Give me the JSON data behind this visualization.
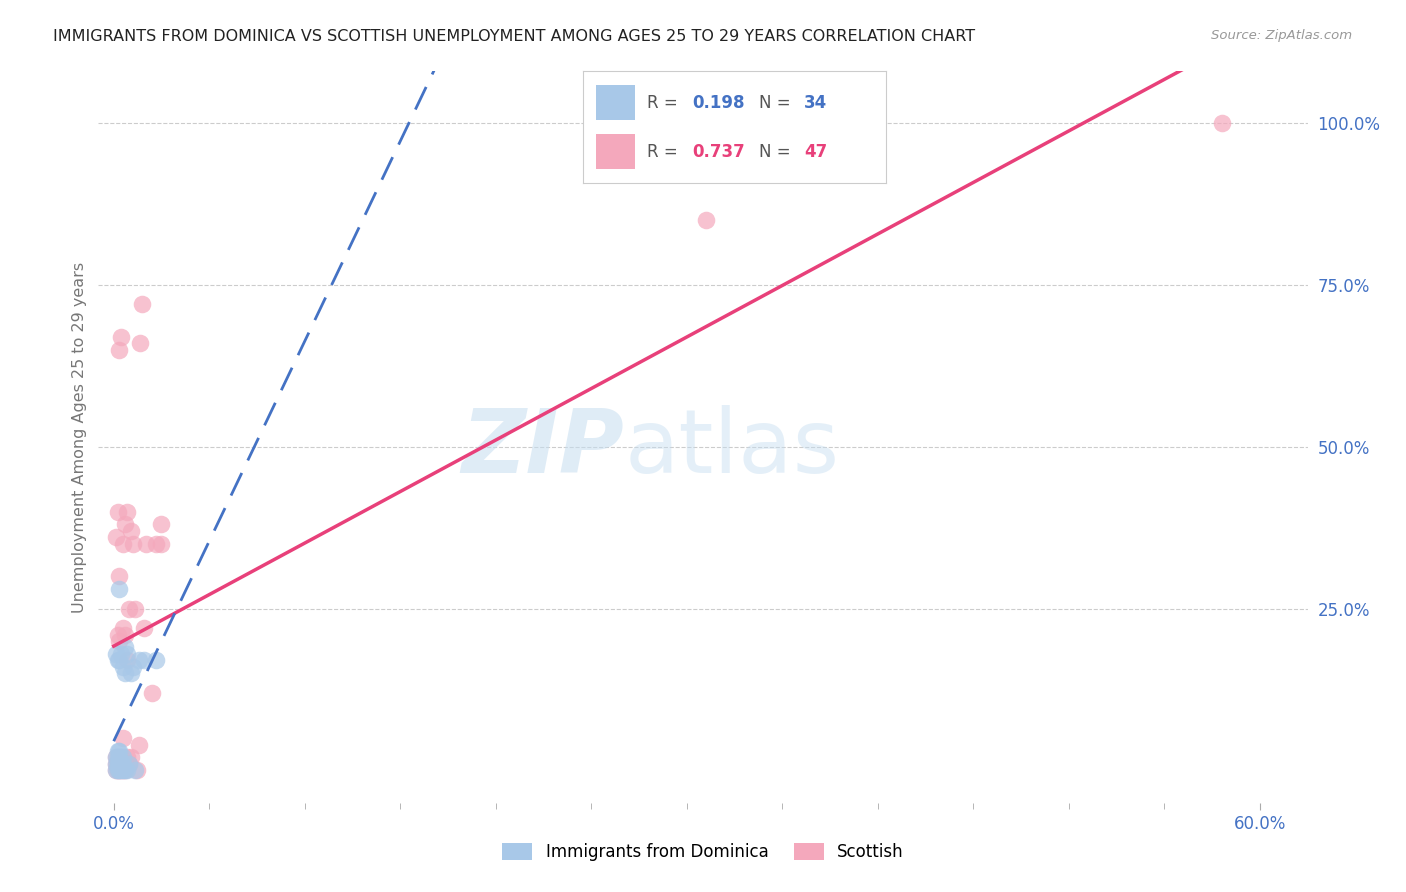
{
  "title": "IMMIGRANTS FROM DOMINICA VS SCOTTISH UNEMPLOYMENT AMONG AGES 25 TO 29 YEARS CORRELATION CHART",
  "source": "Source: ZipAtlas.com",
  "ylabel": "Unemployment Among Ages 25 to 29 years",
  "xtick_show": [
    "0.0%",
    "60.0%"
  ],
  "xtick_show_vals": [
    0.0,
    0.6
  ],
  "ytick_labels": [
    "100.0%",
    "75.0%",
    "50.0%",
    "25.0%"
  ],
  "ytick_vals": [
    1.0,
    0.75,
    0.5,
    0.25
  ],
  "xlim": [
    -0.008,
    0.625
  ],
  "ylim": [
    -0.05,
    1.08
  ],
  "blue_R": 0.198,
  "blue_N": 34,
  "pink_R": 0.737,
  "pink_N": 47,
  "blue_scatter_color": "#a8c8e8",
  "pink_scatter_color": "#f4a8bc",
  "blue_line_color": "#4472c4",
  "pink_line_color": "#e8407a",
  "grid_color": "#cccccc",
  "title_color": "#222222",
  "axis_tick_color": "#4472c4",
  "ylabel_color": "#777777",
  "source_color": "#999999",
  "legend_label_blue": "Immigrants from Dominica",
  "legend_label_pink": "Scottish",
  "watermark_zip": "ZIP",
  "watermark_atlas": "atlas",
  "blue_x": [
    0.001,
    0.001,
    0.001,
    0.001,
    0.002,
    0.002,
    0.002,
    0.002,
    0.002,
    0.003,
    0.003,
    0.003,
    0.003,
    0.003,
    0.003,
    0.004,
    0.004,
    0.004,
    0.005,
    0.005,
    0.005,
    0.005,
    0.006,
    0.006,
    0.006,
    0.007,
    0.007,
    0.008,
    0.009,
    0.01,
    0.011,
    0.013,
    0.016,
    0.022
  ],
  "blue_y": [
    0.0,
    0.01,
    0.02,
    0.18,
    0.0,
    0.01,
    0.02,
    0.03,
    0.17,
    0.0,
    0.01,
    0.02,
    0.03,
    0.17,
    0.28,
    0.0,
    0.01,
    0.18,
    0.0,
    0.01,
    0.02,
    0.16,
    0.0,
    0.15,
    0.19,
    0.0,
    0.18,
    0.01,
    0.15,
    0.16,
    0.0,
    0.17,
    0.17,
    0.17
  ],
  "pink_x": [
    0.001,
    0.001,
    0.001,
    0.001,
    0.002,
    0.002,
    0.002,
    0.002,
    0.003,
    0.003,
    0.003,
    0.003,
    0.003,
    0.003,
    0.004,
    0.004,
    0.004,
    0.004,
    0.005,
    0.005,
    0.005,
    0.005,
    0.005,
    0.006,
    0.006,
    0.006,
    0.007,
    0.007,
    0.007,
    0.008,
    0.008,
    0.009,
    0.009,
    0.01,
    0.011,
    0.012,
    0.013,
    0.014,
    0.015,
    0.016,
    0.017,
    0.02,
    0.022,
    0.025,
    0.025,
    0.31,
    0.58
  ],
  "pink_y": [
    0.0,
    0.01,
    0.02,
    0.36,
    0.0,
    0.01,
    0.21,
    0.4,
    0.0,
    0.01,
    0.02,
    0.2,
    0.3,
    0.65,
    0.0,
    0.01,
    0.02,
    0.67,
    0.0,
    0.01,
    0.05,
    0.22,
    0.35,
    0.0,
    0.21,
    0.38,
    0.02,
    0.17,
    0.4,
    0.01,
    0.25,
    0.02,
    0.37,
    0.35,
    0.25,
    0.0,
    0.04,
    0.66,
    0.72,
    0.22,
    0.35,
    0.12,
    0.35,
    0.35,
    0.38,
    0.85,
    1.0
  ],
  "pink_trend_x0": 0.0,
  "pink_trend_x1": 0.6,
  "blue_trend_x0": 0.0,
  "blue_trend_x1": 0.6
}
